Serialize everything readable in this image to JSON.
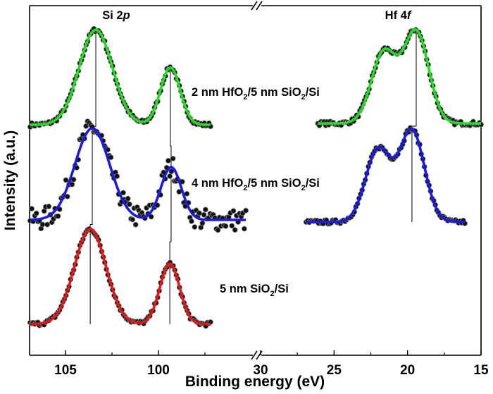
{
  "chart_data": {
    "type": "line",
    "title": "",
    "xlabel": "Binding energy (eV)",
    "ylabel": "Intensity (a.u.)",
    "x_axis_break": true,
    "x_segments": [
      {
        "range": [
          106.9,
          94.9
        ],
        "reversed": true,
        "ticks": [
          105,
          100
        ],
        "tick_labels": [
          "105",
          "100"
        ],
        "minor_ticks": [
          102.5,
          97.5
        ]
      },
      {
        "range": [
          30,
          15
        ],
        "reversed": true,
        "ticks": [
          30,
          25,
          20,
          15
        ],
        "tick_labels": [
          "30",
          "25",
          "20",
          "15"
        ],
        "minor_ticks": [
          27.5,
          22.5,
          17.5
        ]
      }
    ],
    "y_ticks": false,
    "ylim": [
      0,
      100
    ],
    "grid": false,
    "region_labels": [
      {
        "parts": [
          "Si 2",
          "p"
        ],
        "italic_part": 1
      },
      {
        "parts": [
          "Hf 4",
          "f"
        ],
        "italic_part": 1
      }
    ],
    "series": [
      {
        "name_parts": [
          "2 nm HfO",
          "2",
          "/5 nm SiO",
          "2",
          "/Si"
        ],
        "color": "#22dd22",
        "spectra": [
          {
            "region": "Si 2p",
            "x_range": [
              106.9,
              97.2
            ],
            "baseline": 65.9,
            "peaks": [
              {
                "center": 103.37,
                "height": 27.2,
                "fwhm": 2.1
              },
              {
                "center": 99.36,
                "height": 16.4,
                "fwhm": 1.25
              }
            ]
          },
          {
            "region": "Hf 4f",
            "x_range": [
              26.1,
              15.0
            ],
            "baseline": 66.3,
            "peaks": [
              {
                "center": 19.41,
                "height": 26.1,
                "fwhm": 2.0
              },
              {
                "center": 21.61,
                "height": 20.3,
                "fwhm": 2.0
              }
            ]
          }
        ]
      },
      {
        "name_parts": [
          "4 nm HfO",
          "2",
          "/5 nm SiO",
          "2",
          "/Si"
        ],
        "color": "#1a1ae0",
        "spectra": [
          {
            "region": "Si 2p",
            "x_range": [
              106.9,
              95.3
            ],
            "baseline": 38.7,
            "peaks": [
              {
                "center": 103.56,
                "height": 26.2,
                "fwhm": 2.2
              },
              {
                "center": 99.32,
                "height": 15.1,
                "fwhm": 1.3
              }
            ]
          },
          {
            "region": "Hf 4f",
            "x_range": [
              26.9,
              16.1
            ],
            "baseline": 38.1,
            "peaks": [
              {
                "center": 19.7,
                "height": 26.1,
                "fwhm": 2.0
              },
              {
                "center": 22.0,
                "height": 20.7,
                "fwhm": 2.0
              }
            ]
          }
        ]
      },
      {
        "name_parts": [
          "5 nm SiO",
          "2",
          "/Si"
        ],
        "color": "#e01a1a",
        "spectra": [
          {
            "region": "Si 2p",
            "x_range": [
              106.9,
              97.2
            ],
            "baseline": 8.9,
            "peaks": [
              {
                "center": 103.67,
                "height": 27.2,
                "fwhm": 2.0
              },
              {
                "center": 99.39,
                "height": 17.3,
                "fwhm": 1.25
              }
            ]
          }
        ]
      }
    ],
    "guide_lines": [
      {
        "region": "Si 2p",
        "positions": [
          103.37,
          103.56,
          103.67
        ]
      },
      {
        "region": "Si 2p",
        "positions": [
          99.36,
          99.32,
          99.39
        ]
      },
      {
        "region": "Hf 4f",
        "positions": [
          19.41,
          19.7
        ]
      }
    ],
    "data_marker_color": "#111111"
  }
}
